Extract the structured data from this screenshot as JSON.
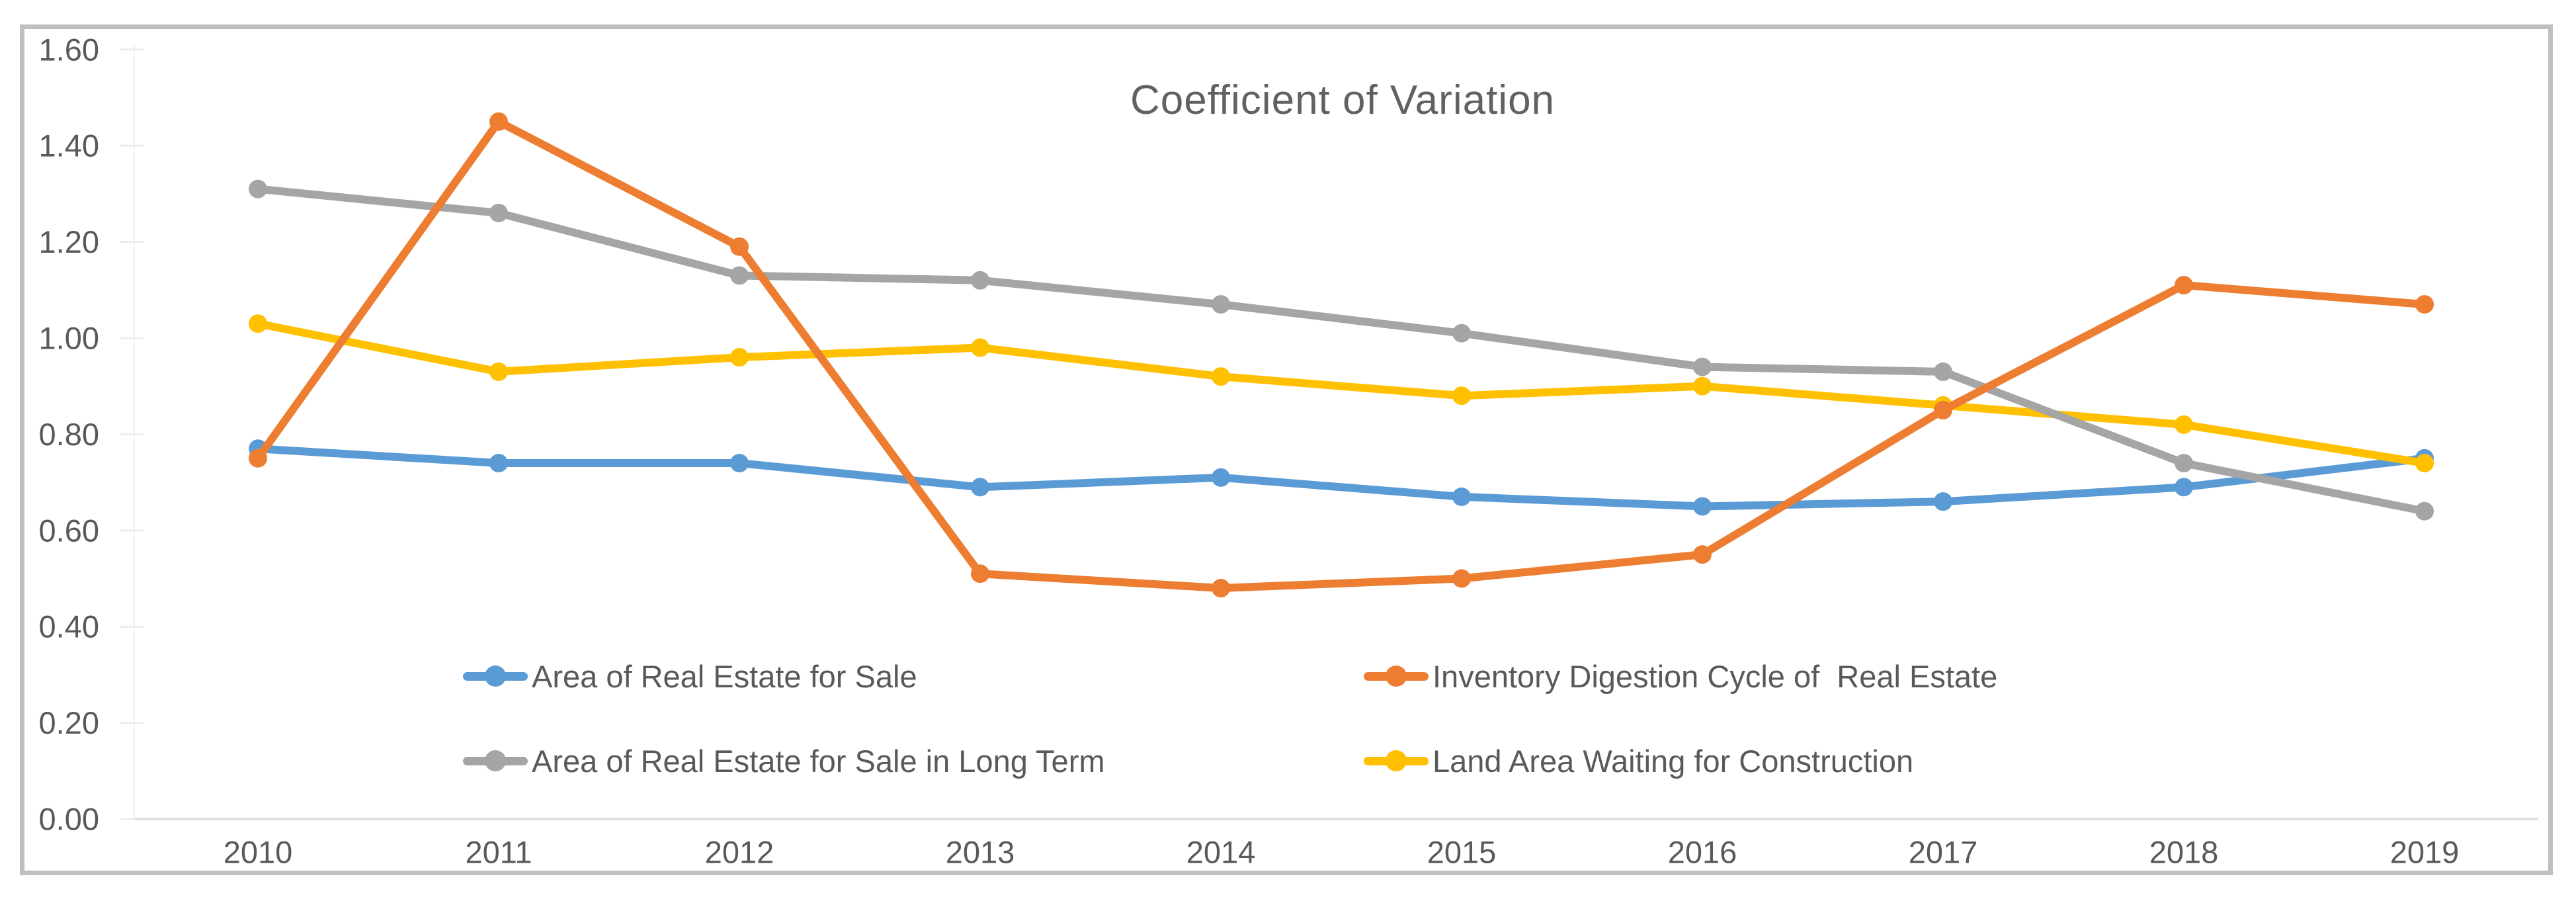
{
  "chart_data": {
    "type": "line",
    "title": "Coefficient of Variation",
    "xlabel": "",
    "ylabel": "",
    "categories": [
      "2010",
      "2011",
      "2012",
      "2013",
      "2014",
      "2015",
      "2016",
      "2017",
      "2018",
      "2019"
    ],
    "y_ticks": [
      "0.00",
      "0.20",
      "0.40",
      "0.60",
      "0.80",
      "1.00",
      "1.20",
      "1.40",
      "1.60"
    ],
    "ylim": [
      0.0,
      1.6
    ],
    "grid": false,
    "legend_position": "inside-bottom-two-columns",
    "series": [
      {
        "name": "Area of Real Estate for Sale",
        "color": "#5B9BD5",
        "values": [
          0.77,
          0.74,
          0.74,
          0.69,
          0.71,
          0.67,
          0.65,
          0.66,
          0.69,
          0.75
        ]
      },
      {
        "name": "Inventory Digestion Cycle of  Real Estate",
        "color": "#ED7D31",
        "values": [
          0.75,
          1.45,
          1.19,
          0.51,
          0.48,
          0.5,
          0.55,
          0.85,
          1.11,
          1.07
        ]
      },
      {
        "name": "Area of Real Estate for Sale in Long Term",
        "color": "#A5A5A5",
        "values": [
          1.31,
          1.26,
          1.13,
          1.12,
          1.07,
          1.01,
          0.94,
          0.93,
          0.74,
          0.64
        ]
      },
      {
        "name": "Land Area Waiting for Construction",
        "color": "#FFC000",
        "values": [
          1.03,
          0.93,
          0.96,
          0.98,
          0.92,
          0.88,
          0.9,
          0.86,
          0.82,
          0.74
        ]
      }
    ],
    "draw_order": [
      0,
      3,
      2,
      1
    ],
    "axis_text_color": "#595959",
    "axis_line_color": "#d9d9d9",
    "tick_color": "#ececec",
    "frame_color": "#bfbfbf"
  }
}
